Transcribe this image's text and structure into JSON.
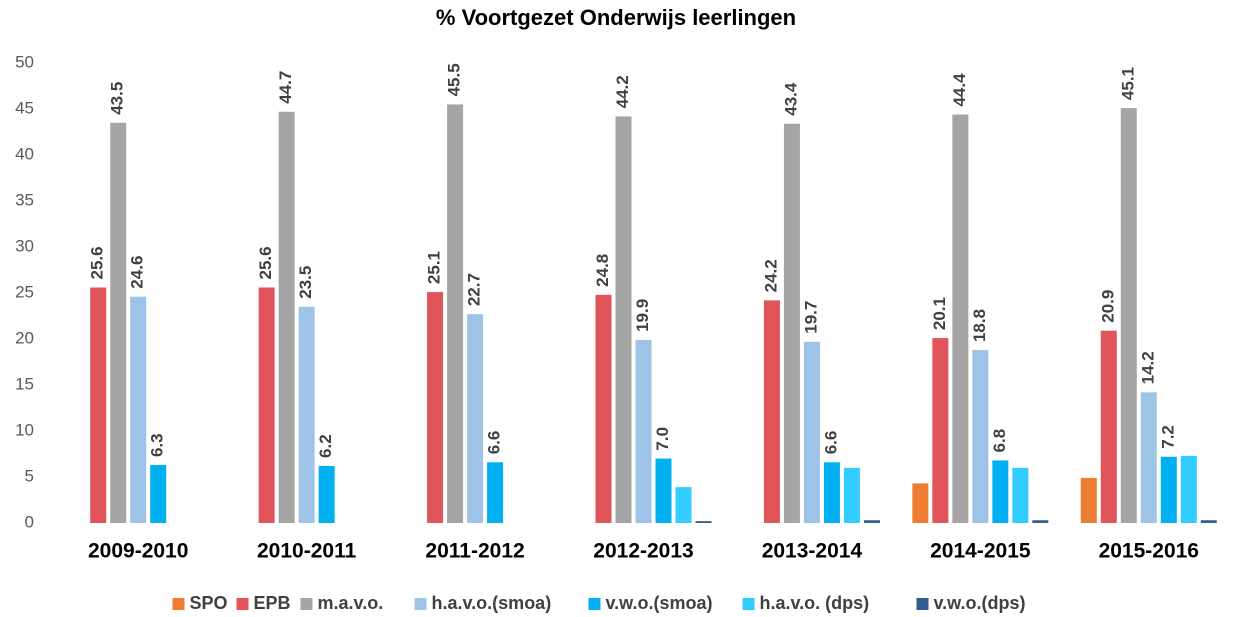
{
  "chart_data": {
    "type": "bar",
    "title": "% Voortgezet Onderwijs leerlingen",
    "categories": [
      "2009-2010",
      "2010-2011",
      "2011-2012",
      "2012-2013",
      "2013-2014",
      "2014-2015",
      "2015-2016"
    ],
    "series": [
      {
        "name": "SPO",
        "color": "#ed7d31",
        "values": [
          null,
          null,
          null,
          null,
          null,
          4.3,
          4.9
        ]
      },
      {
        "name": "EPB",
        "color": "#e0545a",
        "values": [
          25.6,
          25.6,
          25.1,
          24.8,
          24.2,
          20.1,
          20.9
        ],
        "value_labels": [
          "25.6",
          "25.6",
          "25.1",
          "24.8",
          "24.2",
          "20.1",
          "20.9"
        ]
      },
      {
        "name": "m.a.v.o.",
        "color": "#a5a5a5",
        "values": [
          43.5,
          44.7,
          45.5,
          44.2,
          43.4,
          44.4,
          45.1
        ],
        "value_labels": [
          "43.5",
          "44.7",
          "45.5",
          "44.2",
          "43.4",
          "44.4",
          "45.1"
        ]
      },
      {
        "name": "h.a.v.o.(smoa)",
        "color": "#9dc3e6",
        "values": [
          24.6,
          23.5,
          22.7,
          19.9,
          19.7,
          18.8,
          14.2
        ],
        "value_labels": [
          "24.6",
          "23.5",
          "22.7",
          "19.9",
          "19.7",
          "18.8",
          "14.2"
        ]
      },
      {
        "name": "v.w.o.(smoa)",
        "color": "#00b0f0",
        "values": [
          6.3,
          6.2,
          6.6,
          7,
          6.6,
          6.8,
          7.2
        ],
        "value_labels": [
          "6.3",
          "6.2",
          "6.6",
          "7.0",
          "6.6",
          "6.8",
          "7.2"
        ]
      },
      {
        "name": "h.a.v.o. (dps)",
        "color": "#33ccff",
        "values": [
          null,
          null,
          null,
          3.9,
          6,
          6,
          7.3
        ]
      },
      {
        "name": "v.w.o.(dps)",
        "color": "#2e5f8f",
        "values": [
          null,
          null,
          null,
          0.2,
          0.3,
          0.3,
          0.3
        ]
      }
    ],
    "ylim": [
      0,
      50
    ],
    "yticks": [
      0,
      5,
      10,
      15,
      20,
      25,
      30,
      35,
      40,
      45,
      50
    ],
    "grid": false,
    "legend": "bottom"
  }
}
